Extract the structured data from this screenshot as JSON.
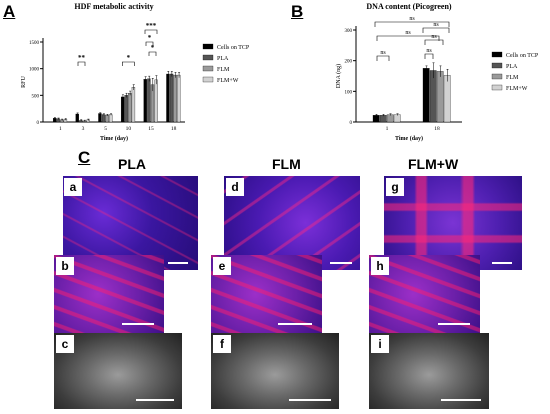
{
  "panel_labels": {
    "a": "A",
    "b": "B",
    "c": "C"
  },
  "chart_data": [
    {
      "type": "bar",
      "title": "HDF metabolic activity",
      "xlabel": "Time (day)",
      "ylabel": "RFU",
      "ylim": [
        0,
        1500
      ],
      "yticks": [
        "0",
        "500",
        "1000",
        "1500"
      ],
      "categories": [
        "1",
        "3",
        "5",
        "10",
        "15",
        "18"
      ],
      "series": [
        {
          "name": "Cells on TCP",
          "values": [
            70,
            150,
            160,
            470,
            800,
            900
          ],
          "errors": [
            15,
            20,
            15,
            40,
            50,
            50
          ]
        },
        {
          "name": "PLA",
          "values": [
            60,
            30,
            140,
            500,
            810,
            900
          ],
          "errors": [
            15,
            15,
            15,
            40,
            50,
            50
          ]
        },
        {
          "name": "FLM",
          "values": [
            40,
            20,
            130,
            540,
            700,
            880
          ],
          "errors": [
            15,
            15,
            15,
            40,
            120,
            50
          ]
        },
        {
          "name": "FLM+W",
          "values": [
            50,
            40,
            140,
            650,
            790,
            880
          ],
          "errors": [
            15,
            15,
            15,
            50,
            80,
            50
          ]
        }
      ],
      "annotations": [
        "**",
        "*",
        "*",
        "*",
        "***"
      ],
      "legend": "right",
      "colors": [
        "#000000",
        "#555555",
        "#9a9a9a",
        "#d2d2d2"
      ]
    },
    {
      "type": "bar",
      "title": "DNA content (Picogreen)",
      "xlabel": "Time (day)",
      "ylabel": "DNA (ng)",
      "ylim": [
        0,
        300
      ],
      "yticks": [
        "0",
        "100",
        "200",
        "300"
      ],
      "categories": [
        "1",
        "18"
      ],
      "series": [
        {
          "name": "Cells on TCP",
          "values": [
            22,
            175
          ],
          "errors": [
            3,
            8
          ]
        },
        {
          "name": "PLA",
          "values": [
            22,
            168
          ],
          "errors": [
            3,
            25
          ]
        },
        {
          "name": "FLM",
          "values": [
            24,
            165
          ],
          "errors": [
            3,
            18
          ]
        },
        {
          "name": "FLM+W",
          "values": [
            24,
            152
          ],
          "errors": [
            3,
            20
          ]
        }
      ],
      "annotations": [
        "ns",
        "ns",
        "ns",
        "ns",
        "ns",
        "ns"
      ],
      "legend": "right",
      "colors": [
        "#000000",
        "#555555",
        "#9a9a9a",
        "#d2d2d2"
      ]
    }
  ],
  "micrographs": {
    "columns": [
      "PLA",
      "FLM",
      "FLM+W"
    ],
    "labels": [
      "a",
      "b",
      "c",
      "d",
      "e",
      "f",
      "g",
      "h",
      "i"
    ]
  }
}
